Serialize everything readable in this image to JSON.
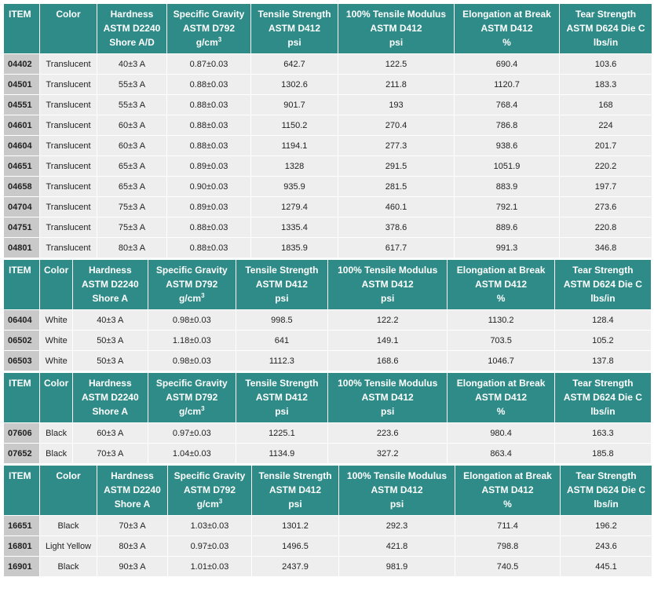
{
  "colors": {
    "header_bg": "#2e8b87",
    "item_cell_bg": "#c9c9c9",
    "row_bg": "#eeeeee"
  },
  "tables": [
    {
      "headers": [
        [
          "ITEM"
        ],
        [
          "Color"
        ],
        [
          "Hardness",
          "ASTM D2240",
          "Shore A/D"
        ],
        [
          "Specific Gravity",
          "ASTM D792",
          "g/cm3"
        ],
        [
          "Tensile Strength",
          "ASTM D412",
          "psi"
        ],
        [
          "100% Tensile Modulus",
          "ASTM D412",
          "psi"
        ],
        [
          "Elongation at Break",
          "ASTM D412",
          "%"
        ],
        [
          "Tear Strength",
          "ASTM D624 Die C",
          "lbs/in"
        ]
      ],
      "rows": [
        [
          "04402",
          "Translucent",
          "40±3 A",
          "0.87±0.03",
          "642.7",
          "122.5",
          "690.4",
          "103.6"
        ],
        [
          "04501",
          "Translucent",
          "55±3 A",
          "0.88±0.03",
          "1302.6",
          "211.8",
          "1120.7",
          "183.3"
        ],
        [
          "04551",
          "Translucent",
          "55±3 A",
          "0.88±0.03",
          "901.7",
          "193",
          "768.4",
          "168"
        ],
        [
          "04601",
          "Translucent",
          "60±3 A",
          "0.88±0.03",
          "1150.2",
          "270.4",
          "786.8",
          "224"
        ],
        [
          "04604",
          "Translucent",
          "60±3 A",
          "0.88±0.03",
          "1194.1",
          "277.3",
          "938.6",
          "201.7"
        ],
        [
          "04651",
          "Translucent",
          "65±3 A",
          "0.89±0.03",
          "1328",
          "291.5",
          "1051.9",
          "220.2"
        ],
        [
          "04658",
          "Translucent",
          "65±3 A",
          "0.90±0.03",
          "935.9",
          "281.5",
          "883.9",
          "197.7"
        ],
        [
          "04704",
          "Translucent",
          "75±3 A",
          "0.89±0.03",
          "1279.4",
          "460.1",
          "792.1",
          "273.6"
        ],
        [
          "04751",
          "Translucent",
          "75±3 A",
          "0.88±0.03",
          "1335.4",
          "378.6",
          "889.6",
          "220.8"
        ],
        [
          "04801",
          "Translucent",
          "80±3 A",
          "0.88±0.03",
          "1835.9",
          "617.7",
          "991.3",
          "346.8"
        ]
      ]
    },
    {
      "headers": [
        [
          "ITEM"
        ],
        [
          "Color"
        ],
        [
          "Hardness",
          "ASTM D2240",
          "Shore A"
        ],
        [
          "Specific Gravity",
          "ASTM D792",
          "g/cm3"
        ],
        [
          "Tensile Strength",
          "ASTM D412",
          "psi"
        ],
        [
          "100% Tensile Modulus",
          "ASTM D412",
          "psi"
        ],
        [
          "Elongation at Break",
          "ASTM D412",
          "%"
        ],
        [
          "Tear Strength",
          "ASTM D624 Die C",
          "lbs/in"
        ]
      ],
      "rows": [
        [
          "06404",
          "White",
          "40±3 A",
          "0.98±0.03",
          "998.5",
          "122.2",
          "1130.2",
          "128.4"
        ],
        [
          "06502",
          "White",
          "50±3 A",
          "1.18±0.03",
          "641",
          "149.1",
          "703.5",
          "105.2"
        ],
        [
          "06503",
          "White",
          "50±3 A",
          "0.98±0.03",
          "1112.3",
          "168.6",
          "1046.7",
          "137.8"
        ]
      ]
    },
    {
      "headers": [
        [
          "ITEM"
        ],
        [
          "Color"
        ],
        [
          "Hardness",
          "ASTM D2240",
          "Shore A"
        ],
        [
          "Specific Gravity",
          "ASTM D792",
          "g/cm3"
        ],
        [
          "Tensile Strength",
          "ASTM D412",
          "psi"
        ],
        [
          "100% Tensile Modulus",
          "ASTM D412",
          "psi"
        ],
        [
          "Elongation at Break",
          "ASTM D412",
          "%"
        ],
        [
          "Tear Strength",
          "ASTM D624 Die C",
          "lbs/in"
        ]
      ],
      "rows": [
        [
          "07606",
          "Black",
          "60±3 A",
          "0.97±0.03",
          "1225.1",
          "223.6",
          "980.4",
          "163.3"
        ],
        [
          "07652",
          "Black",
          "70±3 A",
          "1.04±0.03",
          "1134.9",
          "327.2",
          "863.4",
          "185.8"
        ]
      ]
    },
    {
      "headers": [
        [
          "ITEM"
        ],
        [
          "Color"
        ],
        [
          "Hardness",
          "ASTM D2240",
          "Shore A"
        ],
        [
          "Specific Gravity",
          "ASTM D792",
          "g/cm3"
        ],
        [
          "Tensile Strength",
          "ASTM D412",
          "psi"
        ],
        [
          "100% Tensile Modulus",
          "ASTM D412",
          "psi"
        ],
        [
          "Elongation at Break",
          "ASTM D412",
          "%"
        ],
        [
          "Tear Strength",
          "ASTM D624 Die C",
          "lbs/in"
        ]
      ],
      "rows": [
        [
          "16651",
          "Black",
          "70±3 A",
          "1.03±0.03",
          "1301.2",
          "292.3",
          "711.4",
          "196.2"
        ],
        [
          "16801",
          "Light Yellow",
          "80±3 A",
          "0.97±0.03",
          "1496.5",
          "421.8",
          "798.8",
          "243.6"
        ],
        [
          "16901",
          "Black",
          "90±3 A",
          "1.01±0.03",
          "2437.9",
          "981.9",
          "740.5",
          "445.1"
        ]
      ]
    }
  ]
}
